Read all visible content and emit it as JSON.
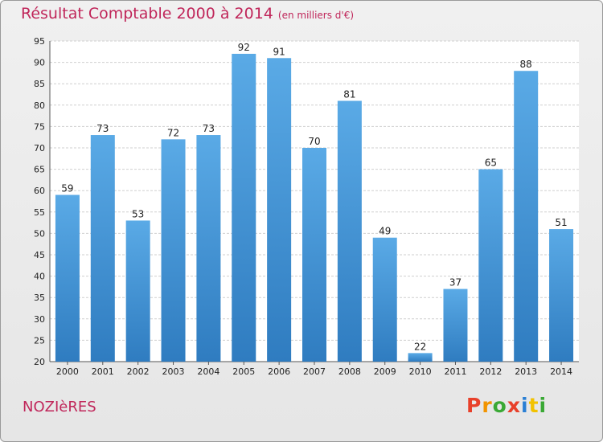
{
  "chart_data": {
    "type": "bar",
    "title": "Résultat Comptable 2000 à 2014",
    "subtitle": "(en milliers d'€)",
    "categories": [
      "2000",
      "2001",
      "2002",
      "2003",
      "2004",
      "2005",
      "2006",
      "2007",
      "2008",
      "2009",
      "2010",
      "2011",
      "2012",
      "2013",
      "2014"
    ],
    "values": [
      59,
      73,
      53,
      72,
      73,
      92,
      91,
      70,
      81,
      49,
      22,
      37,
      65,
      88,
      51
    ],
    "ylim": [
      20,
      95
    ],
    "yticks": [
      20,
      25,
      30,
      35,
      40,
      45,
      50,
      55,
      60,
      65,
      70,
      75,
      80,
      85,
      90,
      95
    ],
    "grid": true,
    "bar_color": "#3a8fd6"
  },
  "footer": {
    "town": "NOZIèRES",
    "logo": "Proxiti"
  },
  "colors": {
    "title": "#c0265a",
    "logo_letters": [
      "#e8402a",
      "#f29400",
      "#3aa935",
      "#e8402a",
      "#2a7fd4",
      "#f2c200",
      "#3aa935"
    ]
  }
}
